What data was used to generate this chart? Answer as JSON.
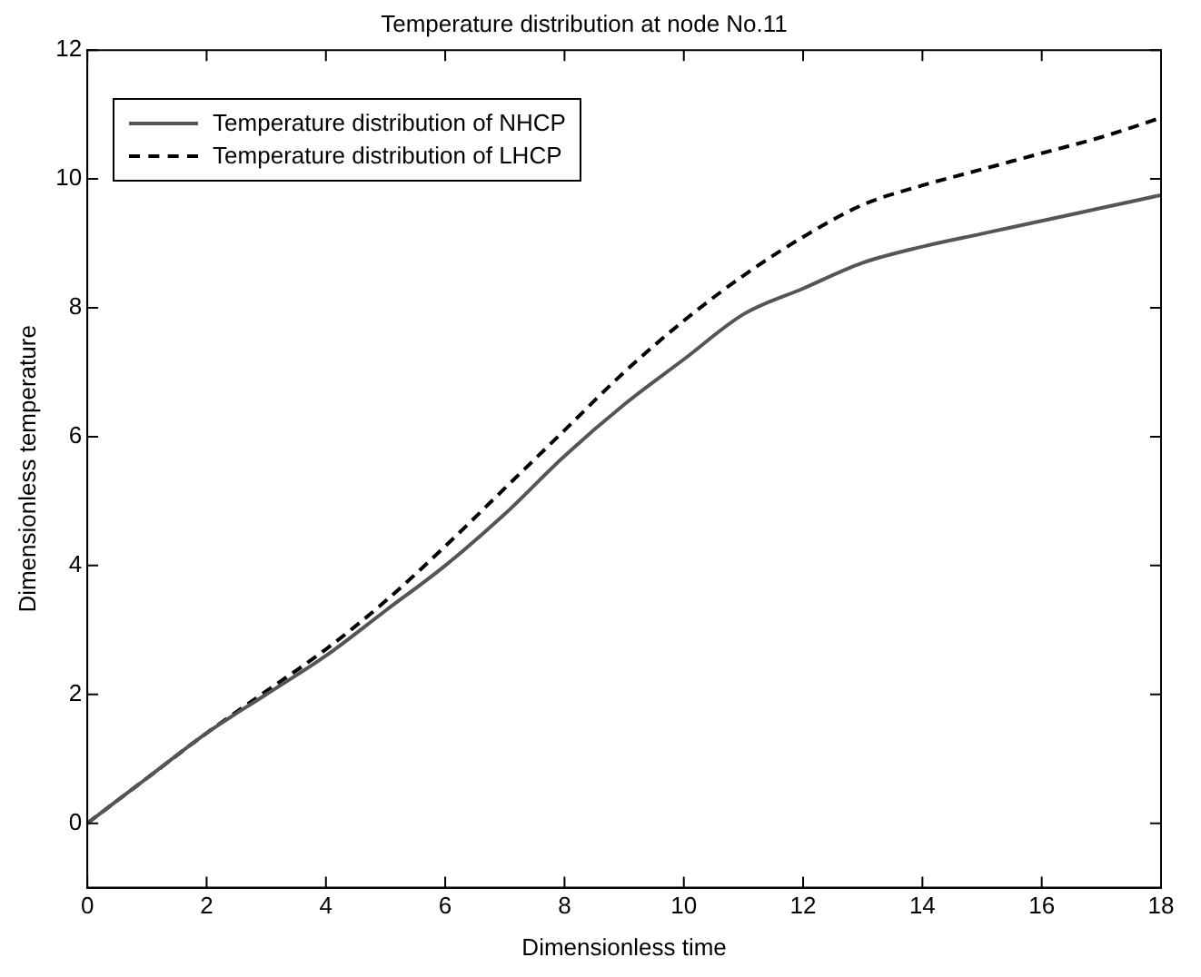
{
  "chart_data": {
    "type": "line",
    "title": "Temperature distribution at node No.11",
    "xlabel": "Dimensionless time",
    "ylabel": "Dimensionless temperature",
    "x": [
      0,
      1,
      2,
      3,
      4,
      5,
      6,
      7,
      8,
      9,
      10,
      11,
      12,
      13,
      14,
      15,
      16,
      17,
      18
    ],
    "series": [
      {
        "name": "Temperature distribution of NHCP",
        "color": "#555555",
        "line_style": "solid",
        "values": [
          0,
          0.7,
          1.4,
          2.0,
          2.6,
          3.3,
          4.0,
          4.8,
          5.7,
          6.5,
          7.2,
          7.9,
          8.3,
          8.7,
          8.95,
          9.15,
          9.35,
          9.55,
          9.75
        ]
      },
      {
        "name": "Temperature distribution of LHCP",
        "color": "#000000",
        "line_style": "dashed",
        "values": [
          0,
          0.7,
          1.4,
          2.05,
          2.7,
          3.45,
          4.3,
          5.2,
          6.1,
          7.0,
          7.8,
          8.5,
          9.1,
          9.6,
          9.9,
          10.15,
          10.4,
          10.65,
          10.95
        ]
      }
    ],
    "xlim": [
      0,
      18
    ],
    "xticks": [
      0,
      2,
      4,
      6,
      8,
      10,
      12,
      14,
      16,
      18
    ],
    "ylim": [
      -1,
      12
    ],
    "yticks": [
      0,
      2,
      4,
      6,
      8,
      10,
      12
    ],
    "grid": false,
    "legend": "top left",
    "marker": "none"
  }
}
